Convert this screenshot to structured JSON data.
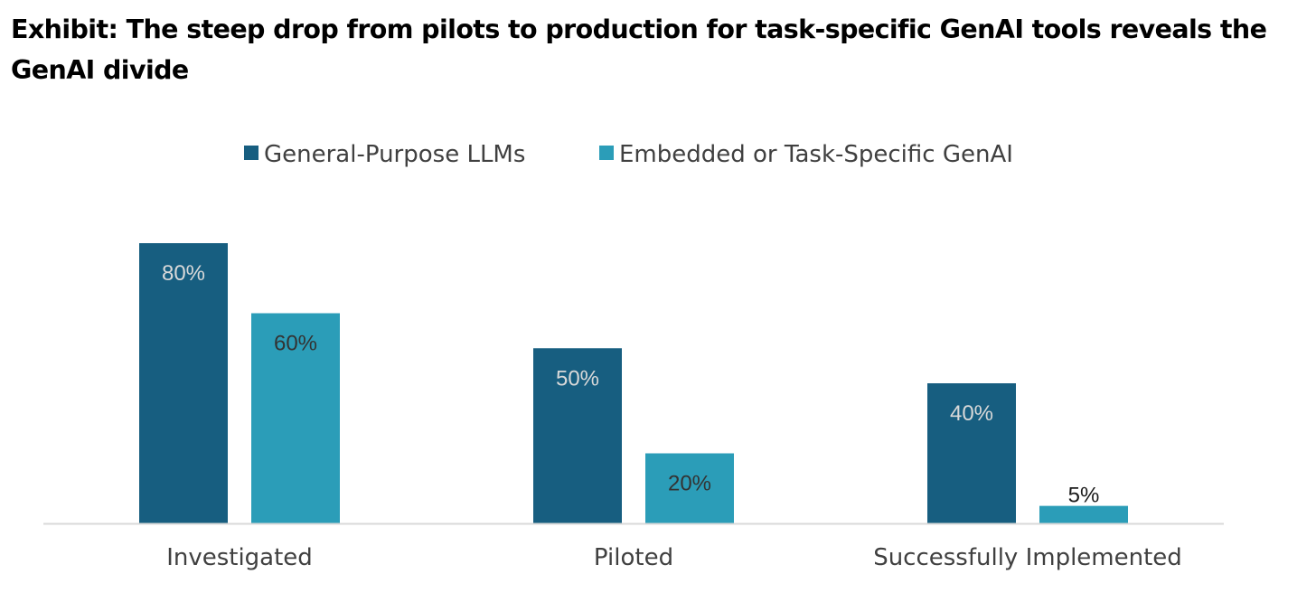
{
  "header": {
    "title": "Exhibit: The steep drop from pilots to production for task-specific GenAI tools reveals the GenAI divide"
  },
  "chart_data": {
    "type": "bar",
    "title": "Exhibit: The steep drop from pilots to production for task-specific GenAI tools reveals the GenAI divide",
    "categories": [
      "Investigated",
      "Piloted",
      "Successfully Implemented"
    ],
    "series": [
      {
        "name": "General-Purpose LLMs",
        "values": [
          80,
          50,
          40
        ],
        "labels": [
          "80%",
          "50%",
          "40%"
        ],
        "color": "#175E80",
        "label_color": "#D9D9D9"
      },
      {
        "name": "Embedded or Task-Specific GenAI",
        "values": [
          60,
          20,
          5
        ],
        "labels": [
          "60%",
          "20%",
          "5%"
        ],
        "color": "#2B9DB8",
        "label_color": "#333333"
      }
    ],
    "xlabel": "",
    "ylabel": "",
    "ylim": [
      0,
      100
    ],
    "unit": "%",
    "grid": false,
    "legend_position": "top",
    "baseline_color": "#D9D9D9"
  }
}
